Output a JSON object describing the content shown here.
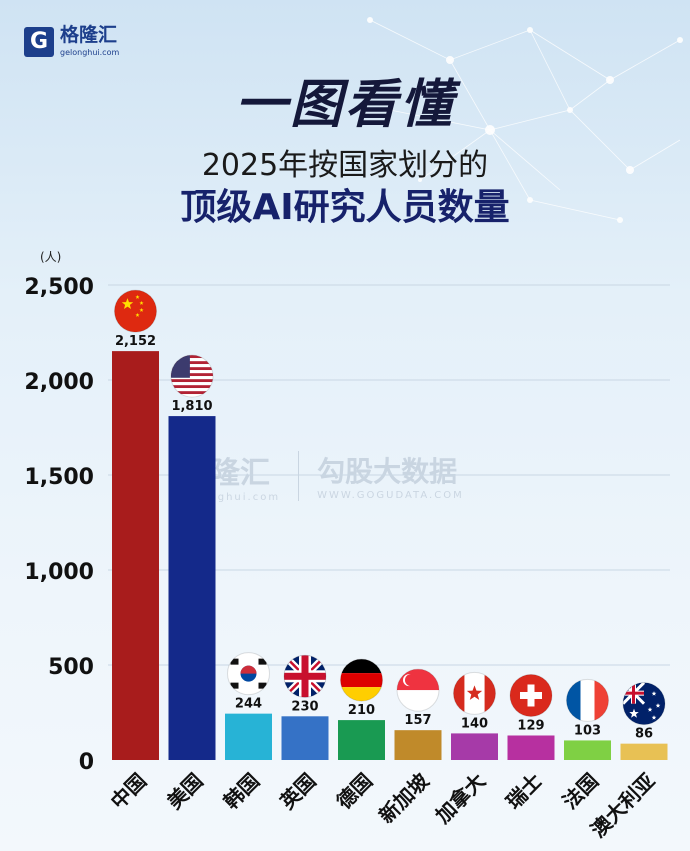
{
  "brand": {
    "name": "格隆汇",
    "url": "gelonghui.com"
  },
  "title": {
    "main": "一图看懂",
    "line1": "2025年按国家划分的",
    "line2": "顶级AI研究人员数量"
  },
  "watermark": {
    "left": "格隆汇",
    "left_url": "gelonghui.com",
    "right": "勾股大数据",
    "right_url": "WWW.GOGUDATA.COM"
  },
  "chart_data": {
    "type": "bar",
    "unit_label": "(人)",
    "categories": [
      "中国",
      "美国",
      "韩国",
      "英国",
      "德国",
      "新加坡",
      "加拿大",
      "瑞士",
      "法国",
      "澳大利亚"
    ],
    "values": [
      2152,
      1810,
      244,
      230,
      210,
      157,
      140,
      129,
      103,
      86
    ],
    "value_labels": [
      "2,152",
      "1,810",
      "244",
      "230",
      "210",
      "157",
      "140",
      "129",
      "103",
      "86"
    ],
    "colors": [
      "#a81c1c",
      "#14298a",
      "#27b3d6",
      "#3572c6",
      "#199a52",
      "#c08a2a",
      "#a63aa8",
      "#b730a0",
      "#7fd044",
      "#e8c154"
    ],
    "flags": [
      "china-flag-icon",
      "usa-flag-icon",
      "korea-flag-icon",
      "uk-flag-icon",
      "germany-flag-icon",
      "singapore-flag-icon",
      "canada-flag-icon",
      "switzerland-flag-icon",
      "france-flag-icon",
      "australia-flag-icon"
    ],
    "yticks": [
      "0",
      "500",
      "1,000",
      "1,500",
      "2,000",
      "2,500"
    ],
    "ylim": [
      0,
      2500
    ],
    "grid": true
  }
}
